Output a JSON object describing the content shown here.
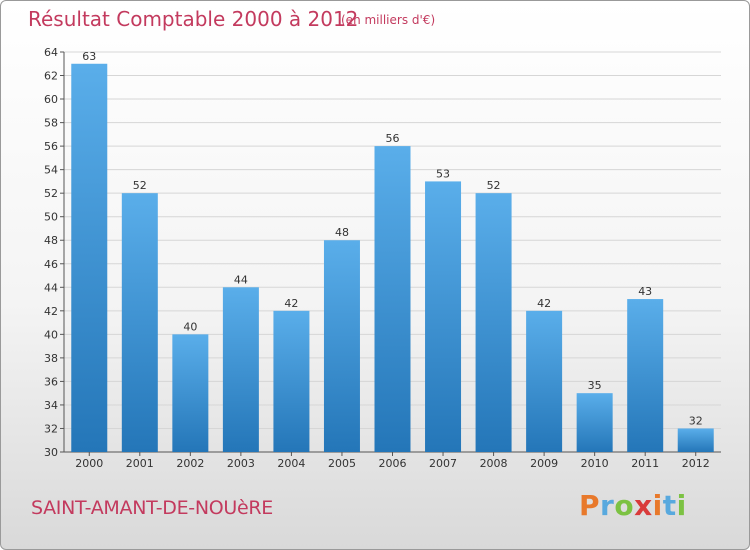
{
  "header": {
    "title": "Résultat Comptable 2000 à 2012",
    "subtitle": "(en milliers d'€)"
  },
  "footer": {
    "commune": "SAINT-AMANT-DE-NOUèRE",
    "logo_text": "Proxiti"
  },
  "colors": {
    "bar_light": "#5aaeea",
    "bar_dark": "#2476b8",
    "title": "#c33a5e",
    "logo_letters": [
      "#e8792b",
      "#58a9de",
      "#7cc243",
      "#d93b3b",
      "#e8792b",
      "#58a9de",
      "#7cc243"
    ]
  },
  "chart_data": {
    "type": "bar",
    "title": "Résultat Comptable 2000 à 2012",
    "subtitle": "(en milliers d'€)",
    "categories": [
      "2000",
      "2001",
      "2002",
      "2003",
      "2004",
      "2005",
      "2006",
      "2007",
      "2008",
      "2009",
      "2010",
      "2011",
      "2012"
    ],
    "values": [
      63,
      52,
      40,
      44,
      42,
      48,
      56,
      53,
      52,
      42,
      35,
      43,
      32
    ],
    "ylim": [
      30,
      64
    ],
    "yticks": [
      30,
      32,
      34,
      36,
      38,
      40,
      42,
      44,
      46,
      48,
      50,
      52,
      54,
      56,
      58,
      60,
      62,
      64
    ],
    "grid": true,
    "legend": "none"
  }
}
